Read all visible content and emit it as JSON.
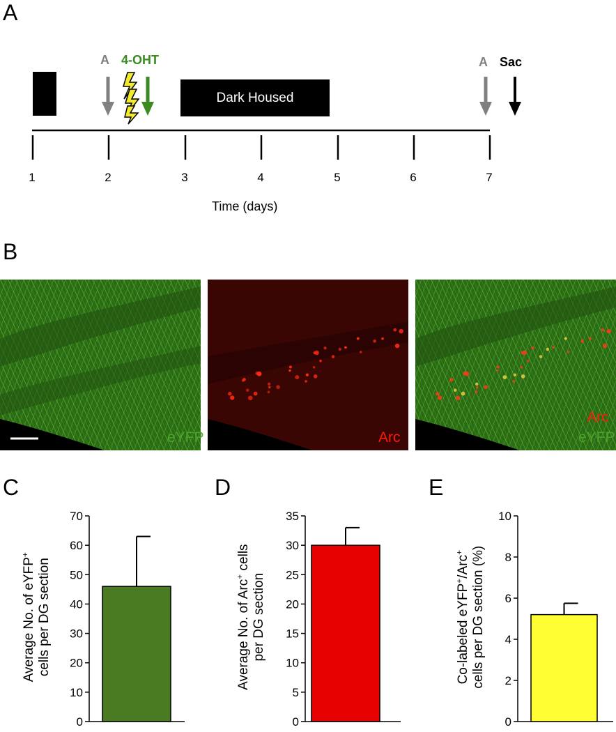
{
  "panels": {
    "a": "A",
    "b": "B",
    "c": "C",
    "d": "D",
    "e": "E"
  },
  "timeline": {
    "marker_a1": "A",
    "drug": "4-OHT",
    "dark_housed": "Dark Housed",
    "marker_a2": "A",
    "sac": "Sac",
    "ticks": [
      "1",
      "2",
      "3",
      "4",
      "5",
      "6",
      "7"
    ],
    "xlabel": "Time (days)",
    "colors": {
      "gray_arrow": "#808080",
      "green_arrow": "#3b8a22",
      "bolt": "#f2ea2b"
    }
  },
  "micrographs": {
    "left_label": "eYFP",
    "middle_label": "Arc",
    "right_label_1": "Arc",
    "right_label_2": "eYFP",
    "colors": {
      "green": "#4ea52b",
      "red": "#ff1a0a",
      "bg_red": "#2a0403"
    }
  },
  "chart_data": [
    {
      "type": "bar",
      "panel": "C",
      "categories": [
        ""
      ],
      "values": [
        46
      ],
      "error": [
        17
      ],
      "ylabel_line1": "Average  No. of eYFP",
      "ylabel_sup": "+",
      "ylabel_line2": "cells per DG section",
      "ylim": [
        0,
        70
      ],
      "yticks": [
        "0",
        "10",
        "20",
        "30",
        "40",
        "50",
        "60",
        "70"
      ],
      "color": "#4a7a22"
    },
    {
      "type": "bar",
      "panel": "D",
      "categories": [
        ""
      ],
      "values": [
        30
      ],
      "error": [
        3
      ],
      "ylabel_line1_pre": "Average  No. of Arc",
      "ylabel_sup": "+",
      "ylabel_line1_post": " cells",
      "ylabel_line2": "per DG section",
      "ylim": [
        0,
        35
      ],
      "yticks": [
        "0",
        "5",
        "10",
        "15",
        "20",
        "25",
        "30",
        "35"
      ],
      "color": "#e60000"
    },
    {
      "type": "bar",
      "panel": "E",
      "categories": [
        ""
      ],
      "values": [
        5.2
      ],
      "error": [
        0.55
      ],
      "ylabel_line1_pre": "Co-labeled  eYFP",
      "ylabel_sup1": "+",
      "ylabel_line1_mid": "/Arc",
      "ylabel_sup2": "+",
      "ylabel_line2": "cells per DG section  (%)",
      "ylim": [
        0,
        10
      ],
      "yticks": [
        "0",
        "2",
        "4",
        "6",
        "8",
        "10"
      ],
      "color": "#ffff33"
    }
  ]
}
